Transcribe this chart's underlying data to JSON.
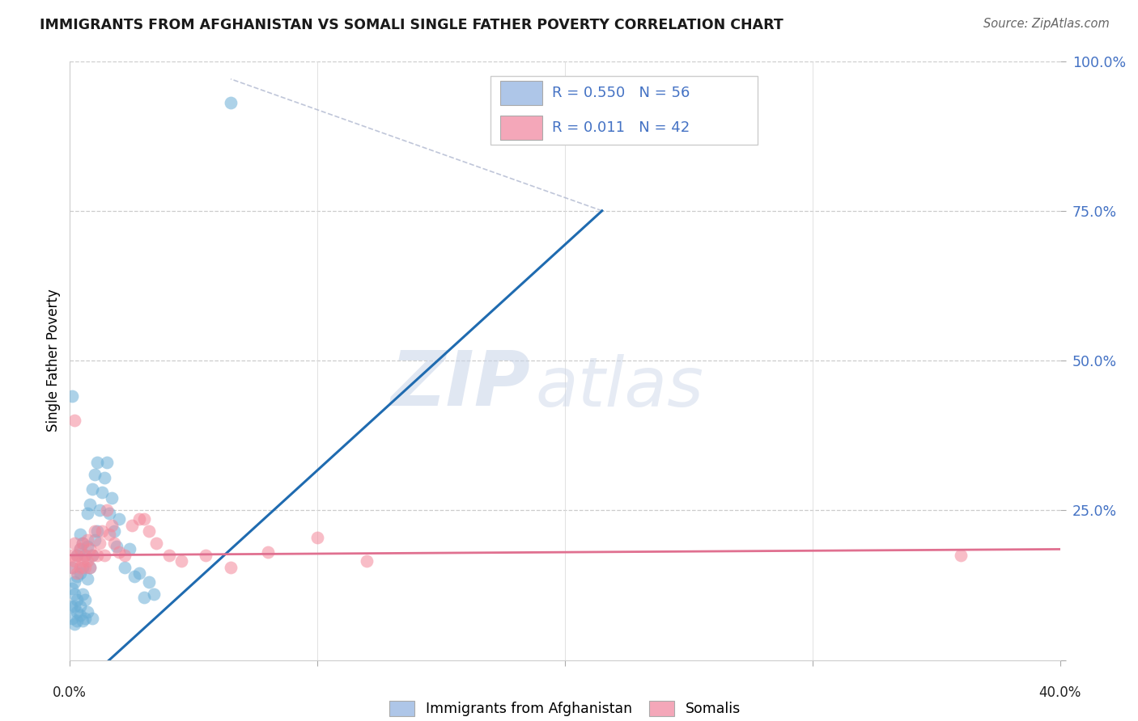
{
  "title": "IMMIGRANTS FROM AFGHANISTAN VS SOMALI SINGLE FATHER POVERTY CORRELATION CHART",
  "source": "Source: ZipAtlas.com",
  "ylabel": "Single Father Poverty",
  "watermark": "ZIPatlas",
  "afghanistan_color": "#6aaed6",
  "somali_color": "#f4879a",
  "blue_line_color": "#1f6bb0",
  "pink_line_color": "#e07090",
  "xlim": [
    0.0,
    0.4
  ],
  "ylim": [
    0.0,
    1.0
  ],
  "blue_line": [
    [
      0.0,
      -0.06
    ],
    [
      0.215,
      0.75
    ]
  ],
  "pink_line": [
    [
      0.0,
      0.175
    ],
    [
      0.4,
      0.185
    ]
  ],
  "dash_line": [
    [
      0.215,
      0.75
    ],
    [
      0.065,
      0.97
    ]
  ],
  "afghanistan_scatter": [
    [
      0.0005,
      0.09
    ],
    [
      0.001,
      0.07
    ],
    [
      0.001,
      0.12
    ],
    [
      0.001,
      0.155
    ],
    [
      0.002,
      0.06
    ],
    [
      0.002,
      0.09
    ],
    [
      0.002,
      0.11
    ],
    [
      0.002,
      0.13
    ],
    [
      0.003,
      0.08
    ],
    [
      0.003,
      0.1
    ],
    [
      0.003,
      0.14
    ],
    [
      0.003,
      0.175
    ],
    [
      0.004,
      0.09
    ],
    [
      0.004,
      0.145
    ],
    [
      0.004,
      0.185
    ],
    [
      0.004,
      0.21
    ],
    [
      0.005,
      0.11
    ],
    [
      0.005,
      0.155
    ],
    [
      0.005,
      0.195
    ],
    [
      0.006,
      0.1
    ],
    [
      0.006,
      0.175
    ],
    [
      0.007,
      0.135
    ],
    [
      0.007,
      0.19
    ],
    [
      0.007,
      0.245
    ],
    [
      0.008,
      0.155
    ],
    [
      0.008,
      0.26
    ],
    [
      0.009,
      0.175
    ],
    [
      0.009,
      0.285
    ],
    [
      0.01,
      0.2
    ],
    [
      0.01,
      0.31
    ],
    [
      0.011,
      0.215
    ],
    [
      0.011,
      0.33
    ],
    [
      0.012,
      0.25
    ],
    [
      0.013,
      0.28
    ],
    [
      0.014,
      0.305
    ],
    [
      0.015,
      0.33
    ],
    [
      0.016,
      0.245
    ],
    [
      0.017,
      0.27
    ],
    [
      0.018,
      0.215
    ],
    [
      0.019,
      0.19
    ],
    [
      0.02,
      0.235
    ],
    [
      0.022,
      0.155
    ],
    [
      0.024,
      0.185
    ],
    [
      0.026,
      0.14
    ],
    [
      0.028,
      0.145
    ],
    [
      0.03,
      0.105
    ],
    [
      0.032,
      0.13
    ],
    [
      0.034,
      0.11
    ],
    [
      0.001,
      0.44
    ],
    [
      0.065,
      0.93
    ],
    [
      0.003,
      0.065
    ],
    [
      0.004,
      0.075
    ],
    [
      0.005,
      0.065
    ],
    [
      0.006,
      0.07
    ],
    [
      0.007,
      0.08
    ],
    [
      0.009,
      0.07
    ]
  ],
  "somali_scatter": [
    [
      0.001,
      0.155
    ],
    [
      0.001,
      0.175
    ],
    [
      0.002,
      0.165
    ],
    [
      0.002,
      0.195
    ],
    [
      0.003,
      0.145
    ],
    [
      0.003,
      0.175
    ],
    [
      0.004,
      0.155
    ],
    [
      0.004,
      0.185
    ],
    [
      0.005,
      0.165
    ],
    [
      0.005,
      0.195
    ],
    [
      0.006,
      0.155
    ],
    [
      0.006,
      0.175
    ],
    [
      0.007,
      0.165
    ],
    [
      0.007,
      0.2
    ],
    [
      0.008,
      0.155
    ],
    [
      0.008,
      0.185
    ],
    [
      0.009,
      0.175
    ],
    [
      0.01,
      0.215
    ],
    [
      0.011,
      0.175
    ],
    [
      0.012,
      0.195
    ],
    [
      0.013,
      0.215
    ],
    [
      0.014,
      0.175
    ],
    [
      0.015,
      0.25
    ],
    [
      0.016,
      0.21
    ],
    [
      0.017,
      0.225
    ],
    [
      0.018,
      0.195
    ],
    [
      0.02,
      0.18
    ],
    [
      0.022,
      0.175
    ],
    [
      0.025,
      0.225
    ],
    [
      0.028,
      0.235
    ],
    [
      0.03,
      0.235
    ],
    [
      0.032,
      0.215
    ],
    [
      0.035,
      0.195
    ],
    [
      0.04,
      0.175
    ],
    [
      0.045,
      0.165
    ],
    [
      0.055,
      0.175
    ],
    [
      0.065,
      0.155
    ],
    [
      0.08,
      0.18
    ],
    [
      0.1,
      0.205
    ],
    [
      0.12,
      0.165
    ],
    [
      0.36,
      0.175
    ],
    [
      0.002,
      0.4
    ]
  ]
}
